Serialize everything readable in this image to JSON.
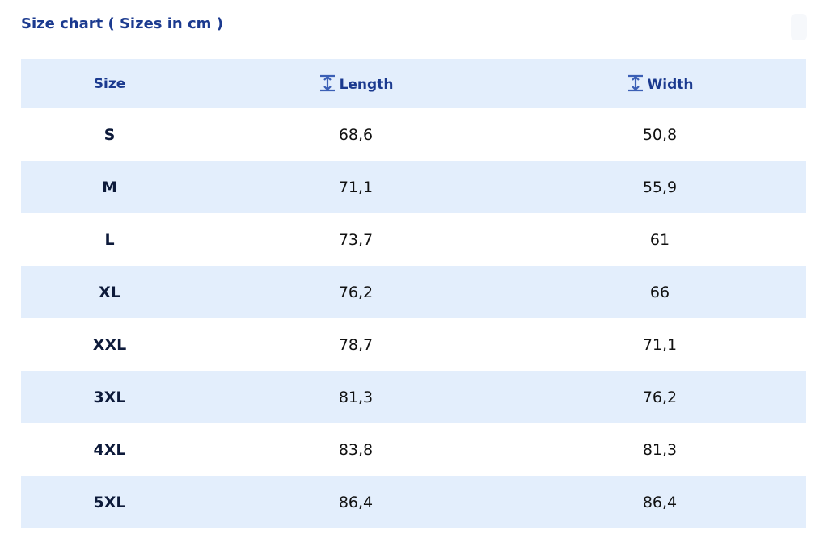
{
  "header": {
    "title": "Size chart ( Sizes in cm )"
  },
  "table": {
    "columns": [
      "Size",
      "Length",
      "Width"
    ],
    "rows": [
      [
        "S",
        "68,6",
        "50,8"
      ],
      [
        "M",
        "71,1",
        "55,9"
      ],
      [
        "L",
        "73,7",
        "61"
      ],
      [
        "XL",
        "76,2",
        "66"
      ],
      [
        "XXL",
        "78,7",
        "71,1"
      ],
      [
        "3XL",
        "81,3",
        "76,2"
      ],
      [
        "4XL",
        "83,8",
        "81,3"
      ],
      [
        "5XL",
        "86,4",
        "86,4"
      ]
    ]
  }
}
